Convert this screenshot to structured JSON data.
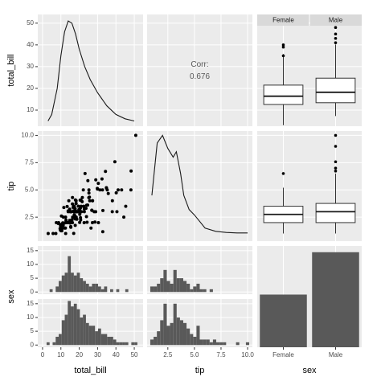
{
  "chart_data": [
    {
      "type": "density",
      "ylabel": "total_bill",
      "color": "#1a1a1a",
      "x": [
        3,
        5,
        8,
        10,
        12,
        14,
        16,
        18,
        20,
        23,
        26,
        30,
        35,
        40,
        45,
        50
      ],
      "values": [
        5,
        8,
        20,
        35,
        46,
        51,
        50,
        45,
        38,
        30,
        24,
        18,
        12,
        8,
        6,
        5
      ],
      "ylim": [
        2.6,
        54
      ],
      "yticks": [
        10,
        20,
        30,
        40,
        50
      ]
    },
    {
      "type": "corr",
      "label": "Corr:",
      "corr": 0.676,
      "color": "#595959"
    },
    {
      "type": "box",
      "categories": [
        "Female",
        "Male"
      ],
      "boxes": [
        {
          "q1": 12.6,
          "median": 16.4,
          "q3": 21.5,
          "whisker_low": 3.07,
          "whisker_high": 35.8,
          "outliers": [
            35,
            39,
            40
          ]
        },
        {
          "q1": 13.4,
          "median": 18.2,
          "q3": 24.7,
          "whisker_low": 7.25,
          "whisker_high": 40.2,
          "outliers": [
            41,
            43,
            45,
            48
          ]
        }
      ]
    },
    {
      "type": "scatter",
      "ylabel": "tip",
      "color": "#000000",
      "x": [
        16.99,
        10.34,
        21.01,
        23.68,
        24.59,
        25.29,
        8.77,
        26.88,
        15.04,
        14.78,
        10.27,
        35.26,
        15.42,
        18.43,
        14.83,
        21.58,
        10.33,
        16.29,
        16.97,
        20.65,
        17.92,
        20.29,
        15.77,
        39.42,
        19.82,
        17.81,
        13.37,
        12.69,
        21.7,
        19.65,
        9.55,
        18.35,
        15.06,
        20.69,
        17.78,
        24.06,
        16.31,
        16.93,
        18.69,
        31.27,
        16.04,
        17.46,
        13.94,
        9.68,
        30.4,
        18.29,
        22.23,
        32.4,
        28.55,
        18.04,
        12.54,
        10.29,
        34.81,
        9.94,
        25.56,
        19.49,
        38.01,
        26.41,
        11.24,
        48.27,
        20.29,
        13.81,
        11.02,
        18.29,
        17.59,
        20.08,
        16.45,
        3.07,
        20.23,
        15.01,
        12.02,
        17.07,
        26.86,
        25.28,
        14.73,
        10.51,
        17.92,
        27.2,
        22.76,
        17.29,
        19.44,
        16.66,
        10.07,
        32.68,
        15.98,
        34.83,
        13.03,
        18.28,
        24.71,
        21.16,
        28.97,
        22.49,
        5.75,
        16.32,
        22.75,
        40.17,
        27.28,
        12.03,
        21.01,
        12.46,
        11.35,
        15.38,
        44.3,
        22.42,
        20.92,
        15.36,
        20.49,
        25.21,
        18.24,
        14.31,
        14,
        7.25,
        38.07,
        23.95,
        25.71,
        17.31,
        29.93,
        50.81,
        15.69,
        43.11,
        29.03,
        48.17,
        45.35,
        40.55,
        30.46,
        24.27,
        32.83,
        35.83,
        29.85,
        23.17,
        13.42,
        8.58,
        11.61,
        10.77,
        15.53,
        10.07,
        12.6,
        32.9,
        34.3,
        41.19,
        28.15,
        7.51,
        9.78,
        12.76,
        13,
        16.4,
        20.76,
        27.18,
        22.67,
        17.82,
        18.78
      ],
      "values": [
        1.01,
        1.66,
        3.5,
        3.31,
        3.61,
        4.71,
        2,
        3.12,
        1.96,
        3.23,
        1.71,
        5,
        1.57,
        3,
        3.02,
        3.92,
        1.67,
        3.71,
        3.5,
        3.35,
        4.08,
        2.75,
        2.23,
        7.58,
        3.18,
        2.34,
        2,
        2,
        4.3,
        3,
        1.45,
        2.5,
        3,
        2.45,
        3.27,
        3.6,
        2,
        3.07,
        2.31,
        5,
        2.24,
        2.54,
        3.06,
        1.32,
        5.6,
        3,
        5,
        6,
        2.05,
        3,
        2.5,
        2.6,
        5.2,
        1.56,
        4.34,
        3.51,
        3,
        1.5,
        1.76,
        6.73,
        3.21,
        2,
        1.98,
        3.76,
        2.64,
        3.15,
        2.47,
        1,
        2.01,
        2.09,
        1.97,
        3,
        3.14,
        5,
        2.2,
        1.25,
        3.08,
        4,
        3,
        2.71,
        3,
        3.4,
        1.83,
        5,
        2.03,
        5.17,
        2,
        4,
        5.85,
        3,
        3,
        3.5,
        1,
        4.3,
        3.25,
        4.73,
        4,
        1.5,
        3,
        1.5,
        2.5,
        3,
        2.5,
        3.48,
        4.08,
        1.64,
        4.06,
        4.29,
        3.76,
        4,
        3,
        1,
        4,
        2.55,
        4,
        3.5,
        5.07,
        10,
        3,
        5,
        5.92,
        5,
        3.5,
        3,
        2,
        2.03,
        1.17,
        4.67,
        5.14,
        6.5,
        3.48,
        1.92,
        3.39,
        1.47,
        3,
        1.25,
        1,
        3.11,
        6.7,
        5,
        3,
        2,
        1.73,
        2.23,
        2,
        2.5,
        2.24,
        2,
        2,
        1.75,
        3
      ],
      "ylim": [
        0.3,
        10.4
      ],
      "yticks": [
        2.5,
        {
          "value": 5,
          "label": "5.0"
        },
        7.5,
        {
          "value": 10,
          "label": "10.0"
        }
      ]
    },
    {
      "type": "density",
      "color": "#1a1a1a",
      "x": [
        1,
        1.5,
        2,
        2.5,
        3,
        3.3,
        3.7,
        4,
        4.5,
        5,
        5.5,
        6,
        7,
        8,
        9,
        10
      ],
      "values": [
        4.5,
        9.3,
        10,
        8.8,
        8,
        8.5,
        6.5,
        4.5,
        3.2,
        2.7,
        2.1,
        1.5,
        1.2,
        1.1,
        1.05,
        1.05
      ]
    },
    {
      "type": "box",
      "boxes": [
        {
          "q1": 2,
          "median": 2.75,
          "q3": 3.5,
          "whisker_low": 1,
          "whisker_high": 5.2,
          "outliers": [
            6.5
          ]
        },
        {
          "q1": 2,
          "median": 3,
          "q3": 3.76,
          "whisker_low": 1,
          "whisker_high": 6.5,
          "outliers": [
            6.73,
            7,
            7.58,
            9,
            10
          ]
        }
      ]
    },
    {
      "type": "histogram",
      "ylabel": "sex",
      "xlabel": "total_bill",
      "bins": [
        2.2,
        3.85,
        5.5,
        7.15,
        8.8,
        10.45,
        12.1,
        13.75,
        15.4,
        17.05,
        18.7,
        20.35,
        22,
        23.65,
        25.3,
        26.95,
        28.6,
        30.25,
        31.9,
        33.55,
        35.2,
        36.85,
        38.5,
        40.15,
        41.8,
        43.45,
        45.1,
        46.75,
        48.4,
        50.05,
        51.7
      ],
      "series": [
        {
          "color": "#595959",
          "values": [
            0,
            1,
            0,
            2,
            4,
            6,
            7,
            13,
            7,
            6,
            7,
            5,
            4,
            3,
            2,
            3,
            3,
            2,
            1,
            2,
            0,
            1,
            0,
            1,
            0,
            0,
            1,
            0,
            0,
            0
          ]
        },
        {
          "color": "#595959",
          "values": [
            1,
            0,
            1,
            3,
            4,
            9,
            11,
            16,
            14,
            15,
            13,
            10,
            11,
            8,
            7,
            7,
            5,
            6,
            4,
            4,
            3,
            3,
            2,
            1,
            1,
            1,
            1,
            0,
            1,
            1
          ]
        }
      ],
      "xlim": [
        -2.6,
        54.8
      ],
      "xticks": [
        0,
        10,
        20,
        30,
        40,
        50
      ],
      "ylim": [
        -0.8,
        16.7
      ],
      "yticks": [
        0,
        5,
        10,
        15
      ]
    },
    {
      "type": "histogram",
      "xlabel": "tip",
      "bins": [
        0.85,
        1.16,
        1.47,
        1.78,
        2.09,
        2.4,
        2.71,
        3.02,
        3.33,
        3.64,
        3.95,
        4.26,
        4.57,
        4.88,
        5.19,
        5.5,
        5.81,
        6.12,
        6.43,
        6.74,
        7.05,
        7.36,
        7.67,
        7.98,
        8.29,
        8.6,
        8.91,
        9.22,
        9.53,
        9.84,
        10.15
      ],
      "series": [
        {
          "color": "#595959",
          "values": [
            2,
            2,
            3,
            5,
            8,
            4,
            3,
            8,
            5,
            5,
            4,
            3,
            1,
            2,
            3,
            1,
            1,
            0,
            1,
            0,
            0,
            0,
            0,
            0,
            0,
            0,
            0,
            0,
            0,
            0
          ]
        },
        {
          "color": "#595959",
          "values": [
            2,
            3,
            5,
            9,
            15,
            7,
            8,
            15,
            10,
            9,
            8,
            6,
            4,
            3,
            7,
            2,
            2,
            2,
            1,
            2,
            1,
            1,
            1,
            0,
            0,
            0,
            1,
            0,
            0,
            1
          ]
        }
      ],
      "xlim": [
        0.55,
        10.45
      ],
      "xticks": [
        2.5,
        {
          "value": 5,
          "label": "5.0"
        },
        7.5,
        {
          "value": 10,
          "label": "10.0"
        }
      ]
    },
    {
      "type": "bar",
      "xlabel": "sex",
      "categories": [
        "Female",
        "Male"
      ],
      "values": [
        87,
        157
      ],
      "color": "#595959",
      "ylim": [
        0,
        162
      ]
    }
  ]
}
